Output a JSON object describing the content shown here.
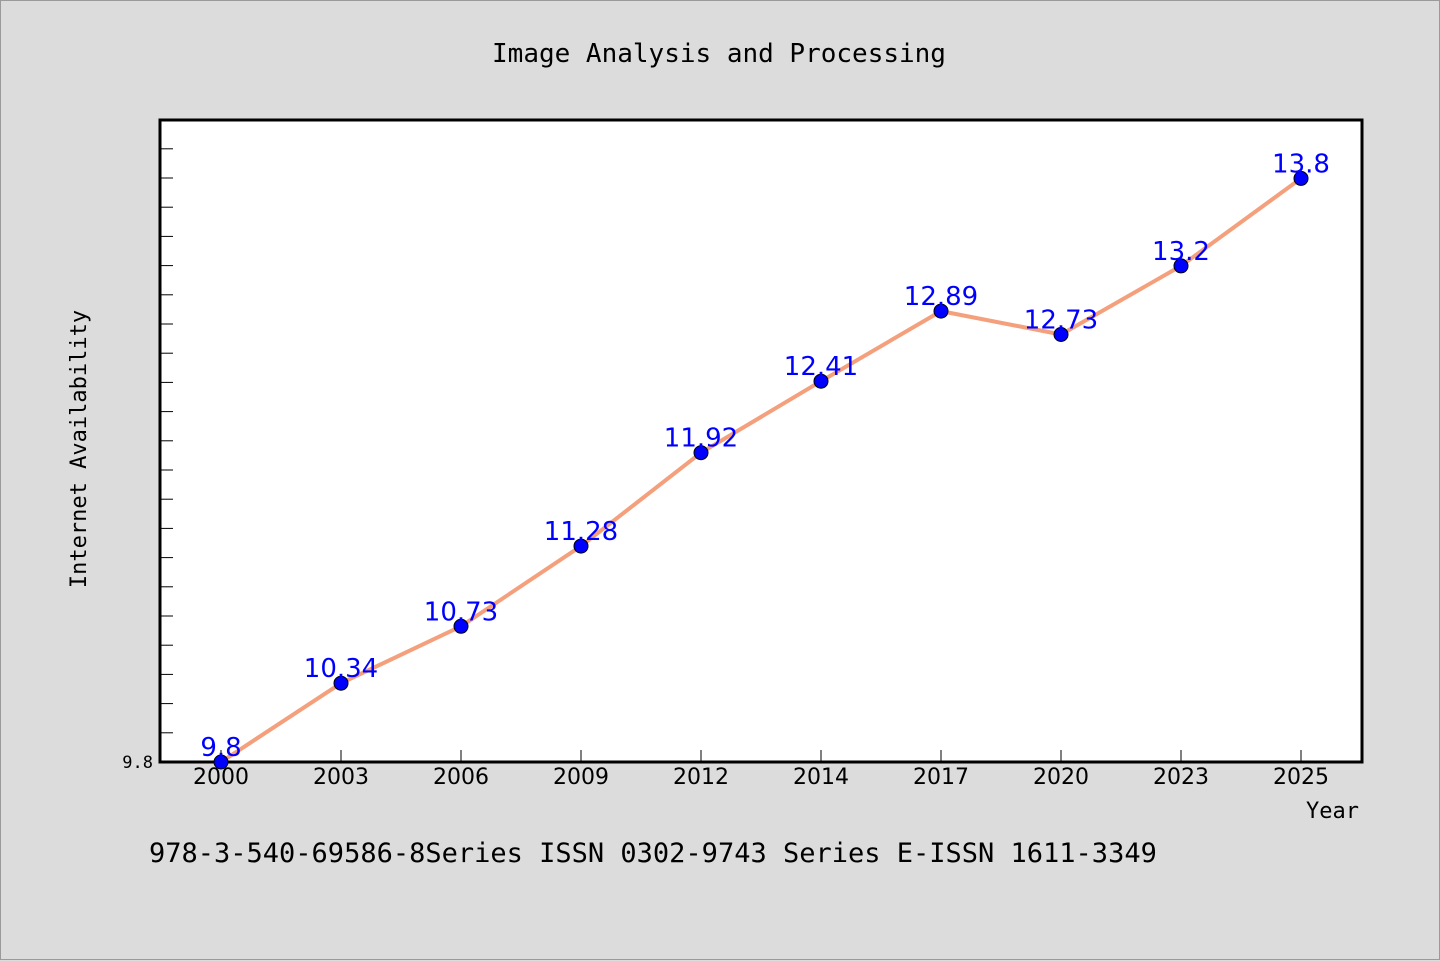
{
  "chart_data": {
    "type": "line",
    "title": "Image Analysis and Processing",
    "xlabel": "Year",
    "ylabel": "Internet Availability",
    "categories": [
      "2000",
      "2003",
      "2006",
      "2009",
      "2012",
      "2014",
      "2017",
      "2020",
      "2023",
      "2025"
    ],
    "series": [
      {
        "values": [
          9.8,
          10.34,
          10.73,
          11.28,
          11.92,
          12.41,
          12.89,
          12.73,
          13.2,
          13.8
        ],
        "line_color": "#f4a07c",
        "marker_color": "#0000ff",
        "label_color": "#0000ff"
      }
    ],
    "ytick_labels": [
      "9.8"
    ],
    "ylim": [
      9.8,
      14.2
    ],
    "grid": false,
    "footnote": "978-3-540-69586-8Series ISSN 0302-9743 Series E-ISSN 1611-3349"
  }
}
